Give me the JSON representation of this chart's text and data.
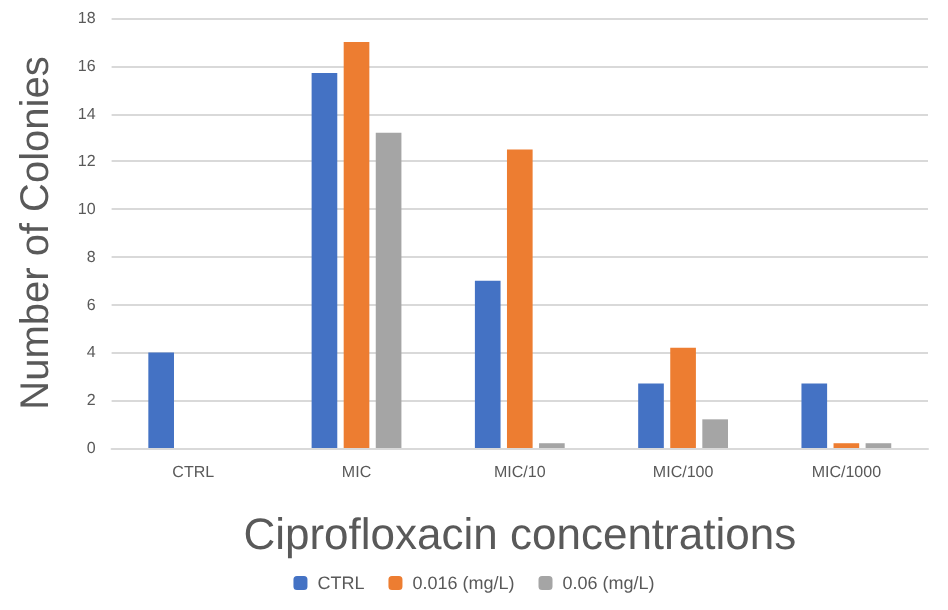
{
  "chart_data": {
    "type": "bar",
    "xlabel": "Ciprofloxacin concentrations",
    "ylabel": "Number of Colonies",
    "categories": [
      "CTRL",
      "MIC",
      "MIC/10",
      "MIC/100",
      "MIC/1000"
    ],
    "series": [
      {
        "name": "CTRL",
        "color": "#4472c4",
        "values": [
          4,
          15.7,
          7,
          2.7,
          2.7
        ]
      },
      {
        "name": "0.016 (mg/L)",
        "color": "#ed7d31",
        "values": [
          null,
          17,
          12.5,
          4.2,
          0.2
        ]
      },
      {
        "name": "0.06 (mg/L)",
        "color": "#a5a5a5",
        "values": [
          null,
          13.2,
          0.2,
          1.2,
          0.2
        ]
      }
    ],
    "ylim": [
      0,
      18
    ],
    "yticks": [
      0,
      2,
      4,
      6,
      8,
      10,
      12,
      14,
      16,
      18
    ],
    "grid": "y",
    "legend": "bottom"
  }
}
